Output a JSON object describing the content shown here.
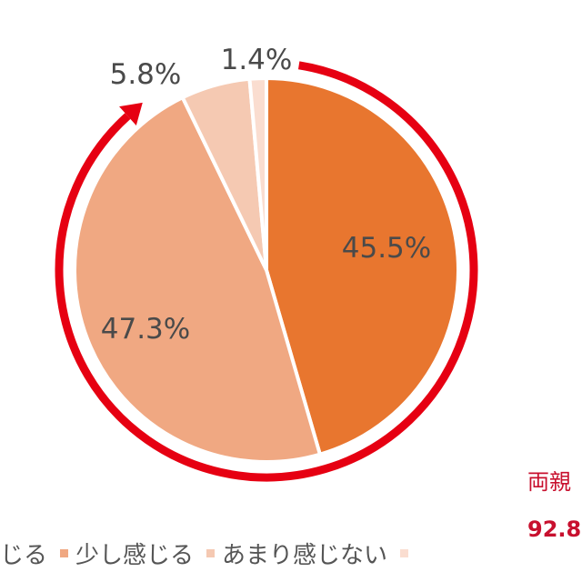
{
  "chart_data": {
    "type": "pie",
    "start": "top",
    "direction": "clockwise",
    "slices": [
      {
        "label": "45.5%",
        "value": 45.5,
        "color": "#E8762F"
      },
      {
        "label": "47.3%",
        "value": 47.3,
        "color": "#F0A882"
      },
      {
        "label": "5.8%",
        "value": 5.8,
        "color": "#F5C9B2"
      },
      {
        "label": "1.4%",
        "value": 1.4,
        "color": "#FADDD0"
      }
    ],
    "legend": {
      "placement": "bottom",
      "entries": [
        {
          "label": "じる",
          "color": "#E8762F"
        },
        {
          "label": "少し感じる",
          "color": "#F0A882"
        },
        {
          "label": "あまり感じない",
          "color": "#F5C9B2"
        },
        {
          "label": "",
          "color": "#FADDD0"
        }
      ]
    },
    "annotation": {
      "arrow_color": "#E60012",
      "text_1": "両親",
      "text_2": "92.8"
    }
  }
}
